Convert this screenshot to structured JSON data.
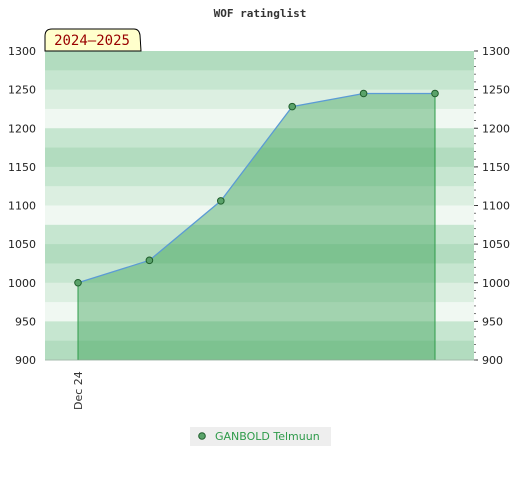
{
  "chart_data": {
    "type": "area",
    "title": "WOF ratinglist",
    "season_label": "2024–2025",
    "xlabel": "",
    "ylabel": "",
    "ylim": [
      900,
      1300
    ],
    "y_ticks": [
      900,
      950,
      1000,
      1050,
      1100,
      1150,
      1200,
      1250,
      1300
    ],
    "x_tick_labels": [
      "Dec 24"
    ],
    "grid": true,
    "legend_position": "bottom-center",
    "series": [
      {
        "name": "GANBOLD Telmuun",
        "color": "#2e9b4a",
        "values": [
          1000,
          1029,
          1106,
          1228,
          1245,
          1245
        ]
      }
    ]
  }
}
